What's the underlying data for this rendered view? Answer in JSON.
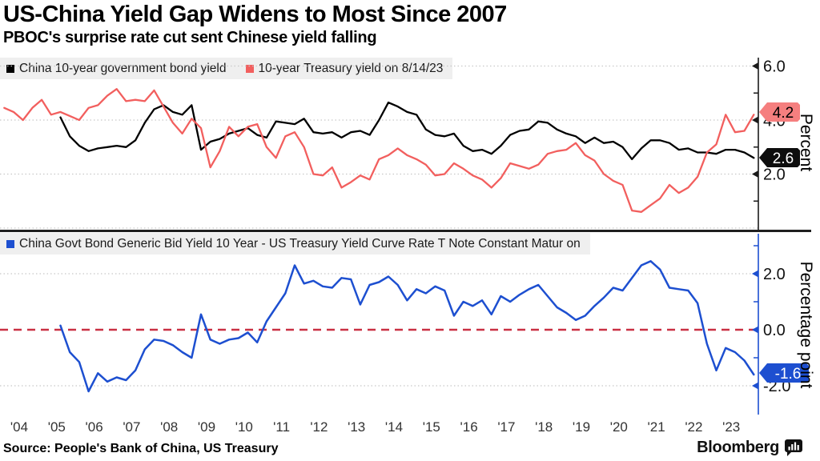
{
  "header": {
    "title": "US-China Yield Gap Widens to Most Since 2007",
    "subtitle": "PBOC's surprise rate cut sent Chinese yield falling"
  },
  "source": {
    "label": "Source: People's Bank of China, US Treasury"
  },
  "branding": {
    "logo_text": "Bloomberg",
    "logo_icon": "bloomberg-chart-bubble-icon"
  },
  "colors": {
    "china_line": "#000000",
    "us_line": "#f25f5e",
    "gap_line": "#1d4fd0",
    "badge_us": "#f57f7f",
    "badge_china": "#0d0d0d",
    "badge_gap": "#1d4fd0",
    "zero_dashed": "#c93043",
    "grid": "#c8c8c8",
    "axis_top": "#1a1a1a",
    "legend_bg": "#efefef",
    "xlabel_color": "#333333"
  },
  "x_axis": {
    "labels": [
      "'04",
      "'05",
      "'06",
      "'07",
      "'08",
      "'09",
      "'10",
      "'11",
      "'12",
      "'13",
      "'14",
      "'15",
      "'16",
      "'17",
      "'18",
      "'19",
      "'20",
      "'21",
      "'22",
      "'23"
    ],
    "years": [
      2004,
      2005,
      2006,
      2007,
      2008,
      2009,
      2010,
      2011,
      2012,
      2013,
      2014,
      2015,
      2016,
      2017,
      2018,
      2019,
      2020,
      2021,
      2022,
      2023
    ]
  },
  "chart_data": [
    {
      "type": "line",
      "panel": "top",
      "ylabel": "Percent",
      "ylim": [
        0,
        6.3
      ],
      "grid": "dotted",
      "legend_position": "top-left",
      "yticks": [
        {
          "value": 6.0,
          "label": "6.0"
        },
        {
          "value": 4.0,
          "label": "4.0"
        },
        {
          "value": 2.0,
          "label": "2.0"
        }
      ],
      "yticks_minor": [
        5,
        3,
        1
      ],
      "gridlines": [
        6,
        4,
        2,
        0
      ],
      "end_labels": [
        {
          "series": "10-year Treasury yield on 8/14/23",
          "label": "4.2",
          "value": 4.2
        },
        {
          "series": "China 10-year government bond yield",
          "label": "2.6",
          "value": 2.6
        }
      ],
      "series": [
        {
          "name": "China 10-year government bond yield",
          "color": "#000000",
          "x_start": 2003.6,
          "x_step": 0.25,
          "values": [
            null,
            null,
            null,
            null,
            null,
            null,
            4.1,
            3.4,
            3.05,
            2.85,
            2.95,
            3.0,
            3.05,
            3.0,
            3.25,
            3.9,
            4.4,
            4.55,
            4.3,
            4.2,
            4.55,
            2.9,
            3.2,
            3.3,
            3.5,
            3.6,
            3.7,
            3.45,
            3.35,
            3.95,
            3.9,
            3.85,
            4.05,
            3.55,
            3.5,
            3.55,
            3.35,
            3.55,
            3.6,
            3.45,
            4.0,
            4.65,
            4.5,
            4.3,
            4.2,
            3.65,
            3.45,
            3.4,
            3.5,
            3.05,
            2.85,
            2.9,
            2.75,
            3.05,
            3.45,
            3.6,
            3.65,
            3.95,
            3.9,
            3.65,
            3.5,
            3.4,
            3.15,
            3.35,
            3.15,
            3.2,
            3.0,
            2.55,
            2.95,
            3.25,
            3.25,
            3.15,
            2.9,
            2.95,
            2.8,
            2.8,
            2.75,
            2.9,
            2.9,
            2.8,
            2.6
          ]
        },
        {
          "name": "10-year Treasury yield on 8/14/23",
          "color": "#f25f5e",
          "x_start": 2003.6,
          "x_step": 0.25,
          "values": [
            4.45,
            4.3,
            4.0,
            4.45,
            4.75,
            4.2,
            4.3,
            4.15,
            4.0,
            4.45,
            4.55,
            4.9,
            5.15,
            4.7,
            4.75,
            4.7,
            5.1,
            4.5,
            3.9,
            3.5,
            4.05,
            3.7,
            2.25,
            2.85,
            3.75,
            3.4,
            3.75,
            3.85,
            3.0,
            2.6,
            3.4,
            3.55,
            3.0,
            2.0,
            1.95,
            2.25,
            1.5,
            1.7,
            1.95,
            1.8,
            2.55,
            2.7,
            2.95,
            2.7,
            2.55,
            2.35,
            1.95,
            2.0,
            2.4,
            2.2,
            1.95,
            1.8,
            1.5,
            1.85,
            2.4,
            2.3,
            2.2,
            2.35,
            2.75,
            2.85,
            2.9,
            3.15,
            2.7,
            2.5,
            2.0,
            1.75,
            1.6,
            0.65,
            0.6,
            0.85,
            1.1,
            1.6,
            1.3,
            1.5,
            1.9,
            2.8,
            3.1,
            4.2,
            3.55,
            3.6,
            4.2
          ]
        }
      ]
    },
    {
      "type": "line",
      "panel": "bottom",
      "ylabel": "Percentage point",
      "ylim": [
        -2.8,
        3.2
      ],
      "grid": "dotted",
      "legend_position": "top-left",
      "yticks": [
        {
          "value": 2.0,
          "label": "2.0"
        },
        {
          "value": 0.0,
          "label": "0.0"
        },
        {
          "value": -2.0,
          "label": "-2.0"
        }
      ],
      "yticks_minor": [
        3,
        1,
        -1
      ],
      "gridlines": [
        2,
        -2
      ],
      "zero_line": {
        "value": 0.0,
        "style": "dashed",
        "color": "#c93043"
      },
      "end_labels": [
        {
          "series": "China Govt Bond Generic Bid Yield 10 Year - US Treasury Yield Curve Rate T Note Constant Matur on",
          "label": "-1.6",
          "value": -1.6
        }
      ],
      "series": [
        {
          "name": "China Govt Bond Generic Bid Yield 10 Year - US Treasury Yield Curve Rate T Note Constant Matur on",
          "color": "#1d4fd0",
          "x_start": 2003.6,
          "x_step": 0.25,
          "values": [
            null,
            null,
            null,
            null,
            null,
            null,
            0.15,
            -0.8,
            -1.15,
            -2.2,
            -1.55,
            -1.85,
            -1.7,
            -1.8,
            -1.45,
            -0.7,
            -0.35,
            -0.4,
            -0.55,
            -0.8,
            -1.0,
            0.55,
            -0.35,
            -0.5,
            -0.35,
            -0.3,
            -0.1,
            -0.45,
            0.3,
            0.8,
            1.3,
            2.3,
            1.65,
            1.75,
            1.55,
            1.5,
            1.85,
            1.8,
            0.9,
            1.6,
            1.7,
            1.9,
            1.6,
            1.05,
            1.45,
            1.3,
            1.55,
            1.4,
            0.5,
            1.0,
            0.85,
            1.05,
            0.55,
            1.2,
            1.0,
            1.25,
            1.45,
            1.6,
            1.2,
            0.8,
            0.6,
            0.35,
            0.5,
            0.85,
            1.15,
            1.5,
            1.4,
            1.85,
            2.3,
            2.45,
            2.15,
            1.5,
            1.45,
            1.4,
            0.95,
            -0.5,
            -1.45,
            -0.65,
            -0.8,
            -1.1,
            -1.6
          ]
        }
      ]
    }
  ]
}
